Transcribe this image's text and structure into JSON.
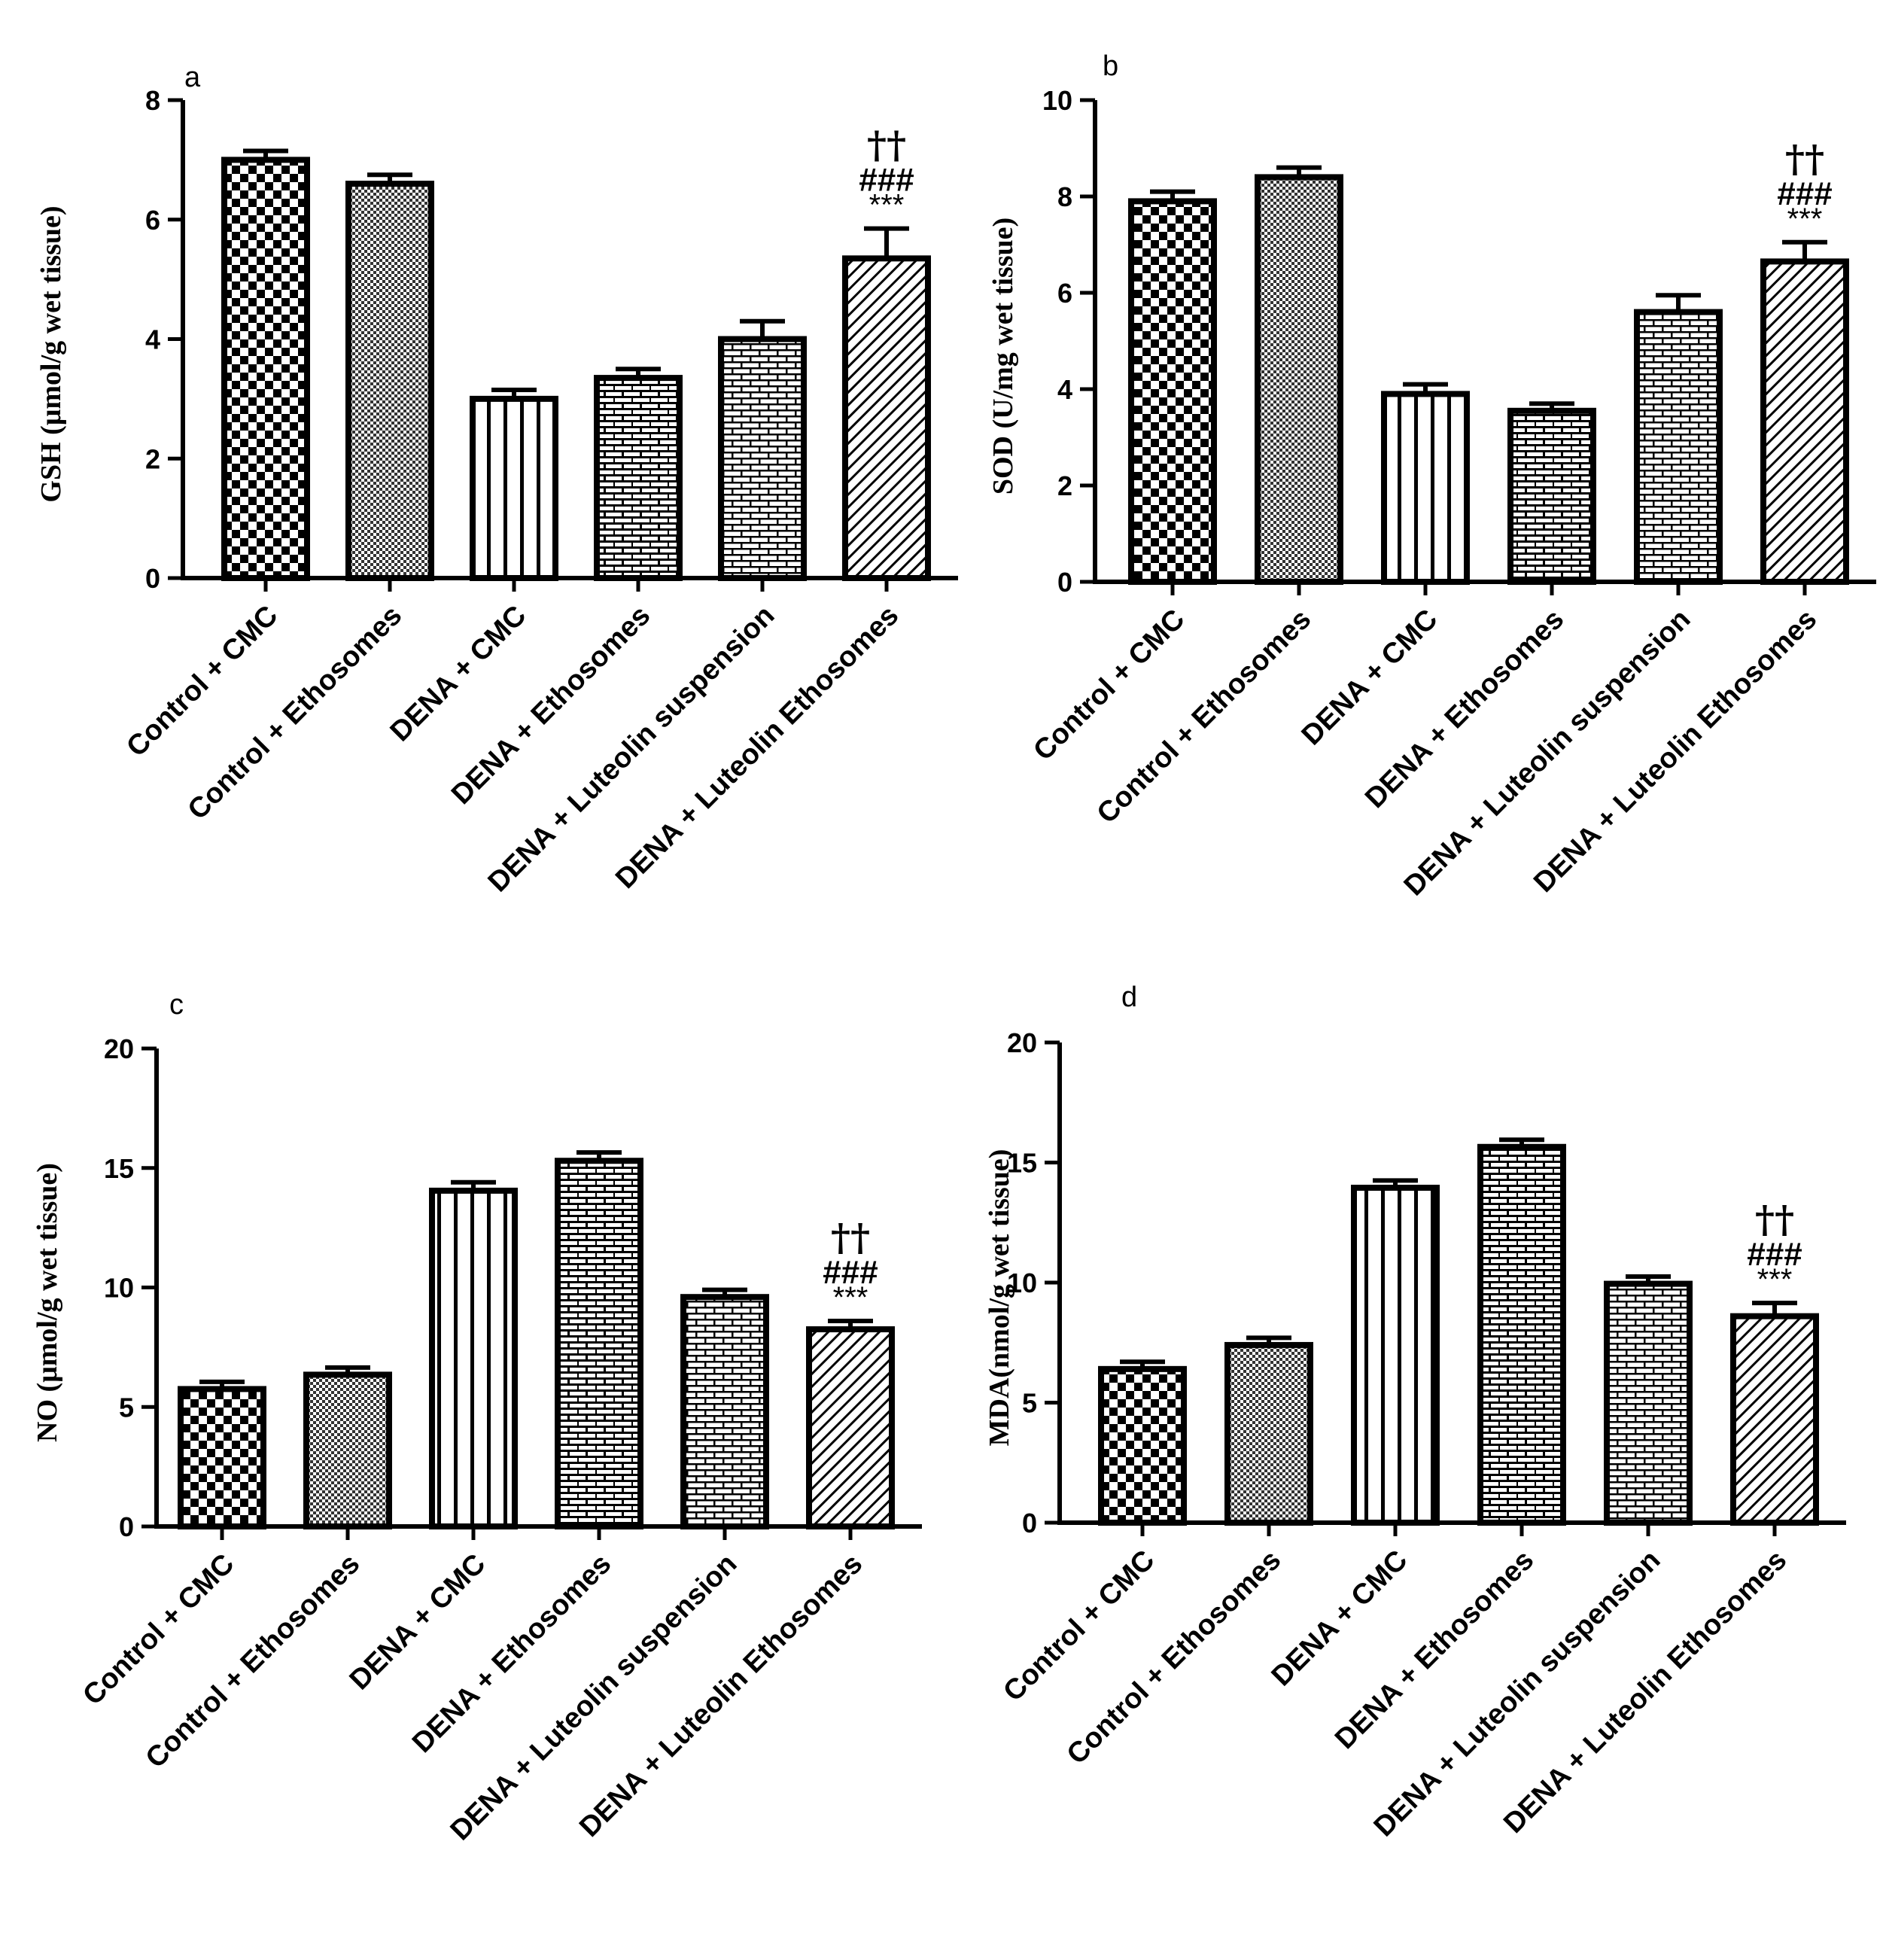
{
  "categories": [
    "Control + CMC",
    "Control + Ethosomes",
    "DENA + CMC",
    "DENA + Ethosomes",
    "DENA + Luteolin suspension",
    "DENA + Luteolin Ethosomes"
  ],
  "significance": {
    "dagger": "††",
    "hash": "###",
    "star": "***"
  },
  "chart_data": [
    {
      "type": "bar",
      "panel": "a",
      "ylabel": "GSH (μmol/g wet tissue)",
      "ylim": [
        0,
        8
      ],
      "yticks": [
        0,
        2,
        4,
        6,
        8
      ],
      "categories": [
        "Control + CMC",
        "Control + Ethosomes",
        "DENA + CMC",
        "DENA + Ethosomes",
        "DENA + Luteolin suspension",
        "DENA + Luteolin Ethosomes"
      ],
      "values": [
        7.0,
        6.6,
        3.0,
        3.35,
        4.0,
        5.35
      ],
      "errors": [
        0.15,
        0.15,
        0.15,
        0.15,
        0.3,
        0.5
      ],
      "significance_on": "DENA + Luteolin Ethosomes"
    },
    {
      "type": "bar",
      "panel": "b",
      "ylabel": "SOD (U/mg wet tissue)",
      "ylim": [
        0,
        10
      ],
      "yticks": [
        0,
        2,
        4,
        6,
        8,
        10
      ],
      "categories": [
        "Control + CMC",
        "Control + Ethosomes",
        "DENA + CMC",
        "DENA + Ethosomes",
        "DENA + Luteolin suspension",
        "DENA + Luteolin Ethosomes"
      ],
      "values": [
        7.9,
        8.4,
        3.9,
        3.55,
        5.6,
        6.65
      ],
      "errors": [
        0.2,
        0.2,
        0.2,
        0.15,
        0.35,
        0.4
      ],
      "significance_on": "DENA + Luteolin Ethosomes"
    },
    {
      "type": "bar",
      "panel": "c",
      "ylabel": "NO (μmol/g wet tissue)",
      "ylim": [
        0,
        20
      ],
      "yticks": [
        0,
        5,
        10,
        15,
        20
      ],
      "categories": [
        "Control + CMC",
        "Control + Ethosomes",
        "DENA + CMC",
        "DENA + Ethosomes",
        "DENA + Luteolin suspension",
        "DENA + Luteolin Ethosomes"
      ],
      "values": [
        5.75,
        6.35,
        14.05,
        15.3,
        9.6,
        8.25
      ],
      "errors": [
        0.3,
        0.3,
        0.35,
        0.35,
        0.3,
        0.35
      ],
      "significance_on": "DENA + Luteolin Ethosomes"
    },
    {
      "type": "bar",
      "panel": "d",
      "ylabel": "MDA(nmol/g wet tissue)",
      "ylim": [
        0,
        20
      ],
      "yticks": [
        0,
        5,
        10,
        15,
        20
      ],
      "categories": [
        "Control + CMC",
        "Control + Ethosomes",
        "DENA + CMC",
        "DENA + Ethosomes",
        "DENA + Luteolin suspension",
        "DENA + Luteolin Ethosomes"
      ],
      "values": [
        6.4,
        7.4,
        13.95,
        15.65,
        9.95,
        8.6
      ],
      "errors": [
        0.3,
        0.3,
        0.3,
        0.3,
        0.3,
        0.55
      ],
      "significance_on": "DENA + Luteolin Ethosomes"
    }
  ]
}
